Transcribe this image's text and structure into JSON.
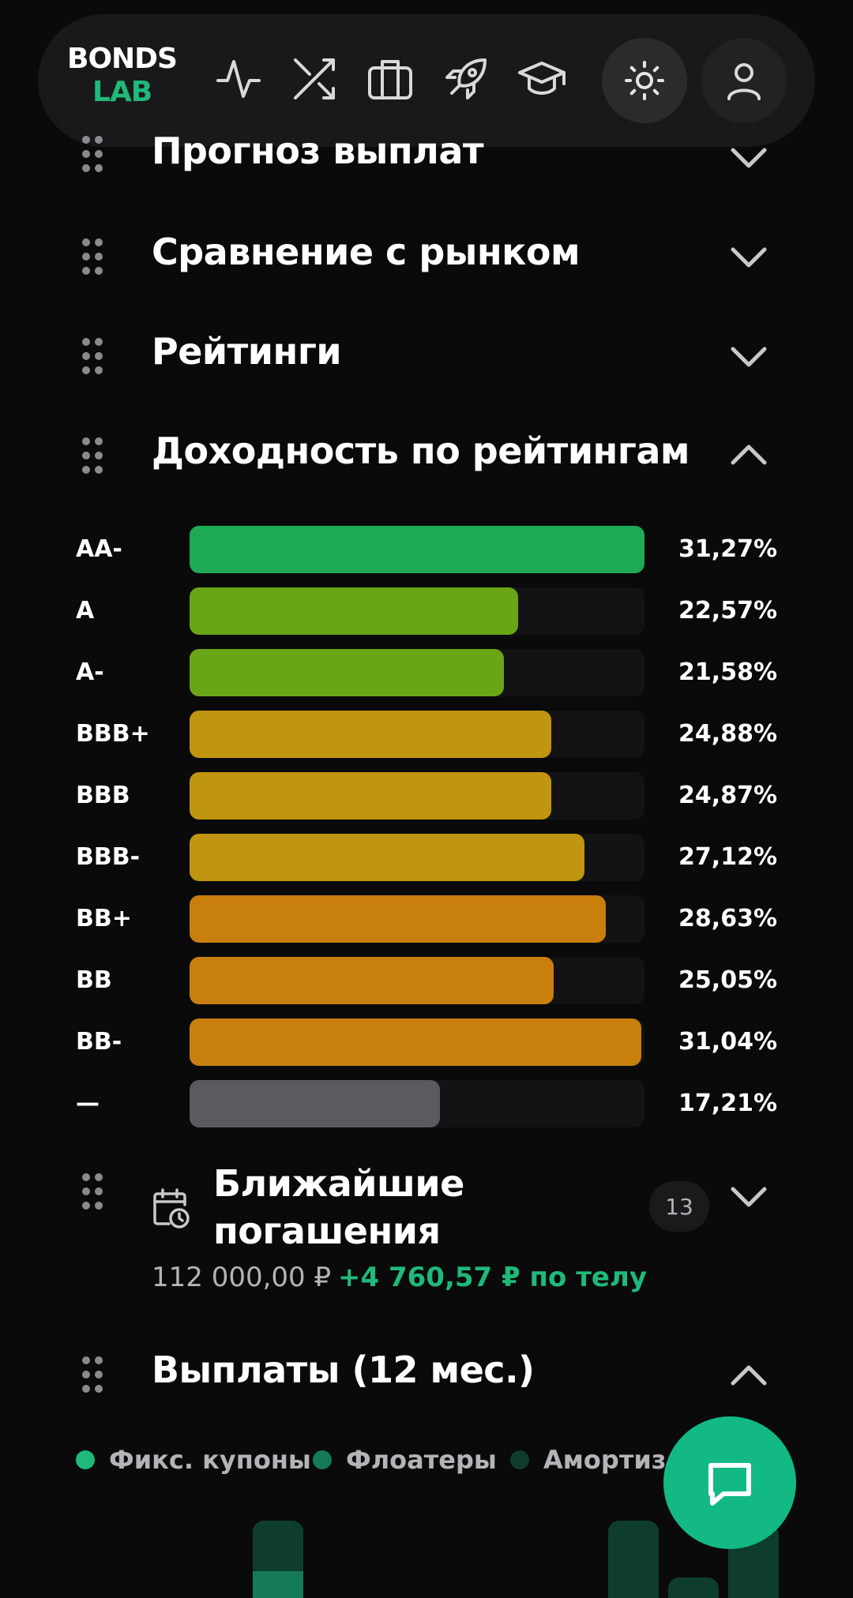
{
  "brand": {
    "line1": "BONDS",
    "line2": "LAB",
    "accent": "#1fb97a"
  },
  "nav": {
    "icons": [
      "activity-icon",
      "shuffle-icon",
      "briefcase-icon",
      "rocket-icon",
      "graduation-cap-icon"
    ],
    "theme_icon": "sun-icon",
    "profile_icon": "user-icon"
  },
  "sections": {
    "payout_forecast": "Прогноз выплат",
    "market_compare": "Сравнение с рынком",
    "ratings": "Рейтинги",
    "yield_by_rating": "Доходность по рейтингам",
    "nearest_redemptions_line1": "Ближайшие",
    "nearest_redemptions_line2": "погашения",
    "payouts": "Выплаты (12 мес.)"
  },
  "chart_data": {
    "type": "bar",
    "orientation": "horizontal",
    "categories": [
      "AA-",
      "A",
      "A-",
      "BBB+",
      "BBB",
      "BBB-",
      "BB+",
      "BB",
      "BB-",
      "—"
    ],
    "values": [
      31.27,
      22.57,
      21.58,
      24.88,
      24.87,
      27.12,
      28.63,
      25.05,
      31.04,
      17.21
    ],
    "value_labels": [
      "31,27%",
      "22,57%",
      "21,58%",
      "24,88%",
      "24,87%",
      "27,12%",
      "28,63%",
      "25,05%",
      "31,04%",
      "17,21%"
    ],
    "colors": [
      "#1eaa55",
      "#6aa517",
      "#6aa517",
      "#c0950f",
      "#c0950f",
      "#c0950f",
      "#c87f0e",
      "#c87f0e",
      "#c87f0e",
      "#5a5a60"
    ],
    "xlim": [
      0,
      31.27
    ]
  },
  "redemptions": {
    "count": "13",
    "amount": "112 000,00 ₽",
    "gain": "+4 760,57 ₽ по телу",
    "icon": "calendar-clock-icon"
  },
  "payouts_legend": [
    {
      "label": "Фикс. купоны",
      "color": "#1fb97a"
    },
    {
      "label": "Флоатеры",
      "color": "#157a56"
    },
    {
      "label": "Амортиза",
      "color": "#0f3d2c"
    }
  ],
  "chat_fab_icon": "chat-icon"
}
